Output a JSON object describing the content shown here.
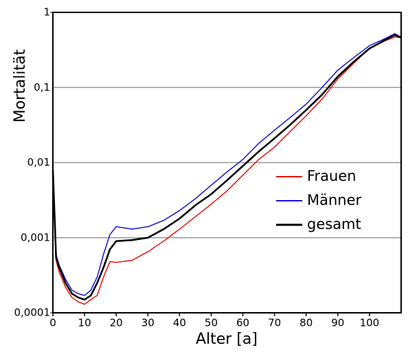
{
  "chart_data": {
    "type": "line",
    "xlabel": "Alter [a]",
    "ylabel": "Mortalität",
    "x": [
      0,
      1,
      2,
      4,
      6,
      8,
      10,
      12,
      14,
      16,
      18,
      20,
      25,
      30,
      35,
      40,
      45,
      50,
      55,
      60,
      65,
      70,
      75,
      80,
      85,
      90,
      95,
      100,
      105,
      108,
      110
    ],
    "series": [
      {
        "name": "Frauen",
        "color": "#e8120c",
        "values": [
          0.007,
          0.0005,
          0.00035,
          0.00022,
          0.00016,
          0.00014,
          0.00013,
          0.00015,
          0.00017,
          0.0003,
          0.00048,
          0.00047,
          0.0005,
          0.00065,
          0.0009,
          0.0013,
          0.0019,
          0.0028,
          0.0042,
          0.0068,
          0.011,
          0.016,
          0.026,
          0.042,
          0.07,
          0.13,
          0.21,
          0.33,
          0.42,
          0.47,
          0.46
        ]
      },
      {
        "name": "Männer",
        "color": "#1212d8",
        "values": [
          0.0085,
          0.0006,
          0.00043,
          0.00028,
          0.0002,
          0.00018,
          0.00017,
          0.0002,
          0.0003,
          0.0006,
          0.0011,
          0.0014,
          0.0013,
          0.0014,
          0.0017,
          0.0023,
          0.0033,
          0.005,
          0.0075,
          0.011,
          0.018,
          0.027,
          0.04,
          0.06,
          0.1,
          0.17,
          0.25,
          0.36,
          0.45,
          0.52,
          0.47
        ]
      },
      {
        "name": "gesamt",
        "color": "#000000",
        "values": [
          0.008,
          0.00055,
          0.0004,
          0.00025,
          0.00018,
          0.00016,
          0.00015,
          0.00017,
          0.00025,
          0.0004,
          0.0007,
          0.0009,
          0.00093,
          0.001,
          0.0013,
          0.0018,
          0.0027,
          0.0038,
          0.0058,
          0.009,
          0.014,
          0.021,
          0.032,
          0.05,
          0.08,
          0.14,
          0.22,
          0.33,
          0.43,
          0.5,
          0.46
        ]
      }
    ],
    "xlim": [
      0,
      110
    ],
    "xticks": [
      0,
      10,
      20,
      30,
      40,
      50,
      60,
      70,
      80,
      90,
      100
    ],
    "ylim": [
      0.0001,
      1
    ],
    "log_y": true,
    "yticks": [
      {
        "value": 0.0001,
        "label": "0,0001"
      },
      {
        "value": 0.001,
        "label": "0,001"
      },
      {
        "value": 0.01,
        "label": "0,01"
      },
      {
        "value": 0.1,
        "label": "0,1"
      },
      1
    ],
    "grid": true,
    "legend": "right"
  }
}
